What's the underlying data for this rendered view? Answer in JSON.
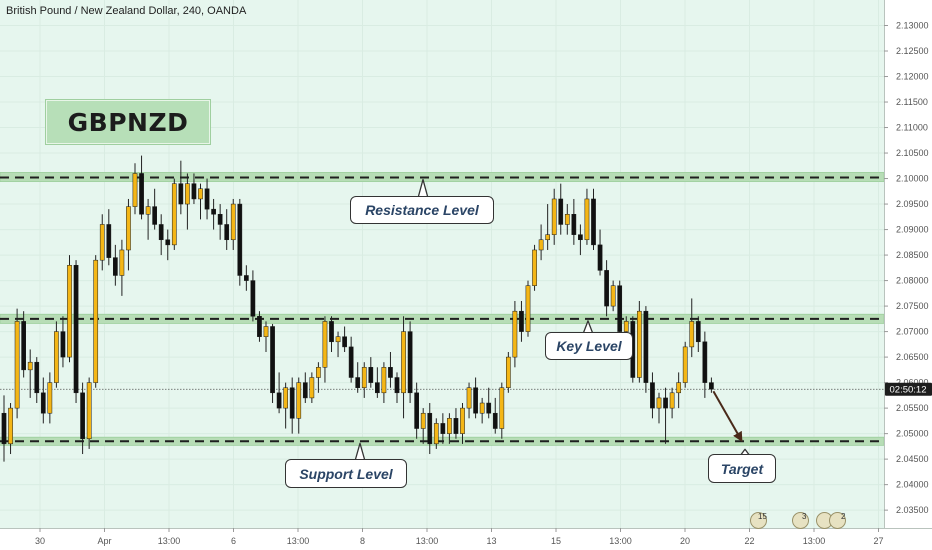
{
  "header": {
    "symbol_title": "British Pound / New Zealand Dollar, 240, OANDA"
  },
  "badge": {
    "label": "GBPNZD"
  },
  "annotations": {
    "resistance": "Resistance Level",
    "key": "Key Level",
    "support": "Support Level",
    "target": "Target"
  },
  "price_readout": {
    "time_label": "02:50:12",
    "last_price": 2.0587
  },
  "events": [
    {
      "name": "event-group-1",
      "count": "15"
    },
    {
      "name": "event-group-2",
      "count": "3"
    },
    {
      "name": "event-group-3",
      "count": ""
    },
    {
      "name": "event-group-4",
      "count": "2"
    }
  ],
  "colors": {
    "background": "#e6f6ee",
    "zone_fill": "#b7ddb6",
    "zone_dash": "#1f1f1f",
    "candle_up": "#f4b616",
    "candle_down": "#111111",
    "wick": "#222222",
    "grid": "#d9ece2",
    "axis_text": "#555555",
    "arrow": "#4a2a1a"
  },
  "chart_data": {
    "type": "candlestick",
    "title": "British Pound / New Zealand Dollar, 240, OANDA",
    "ylim": [
      2.0315,
      2.135
    ],
    "y_axis_side": "right",
    "y_ticks": [
      "2.13000",
      "2.12500",
      "2.12000",
      "2.11500",
      "2.11000",
      "2.10500",
      "2.10000",
      "2.09500",
      "2.09000",
      "2.08500",
      "2.08000",
      "2.07500",
      "2.07000",
      "2.06500",
      "2.06000",
      "2.05500",
      "2.05000",
      "2.04500",
      "2.04000",
      "2.03500"
    ],
    "x_ticks": [
      "30",
      "Apr",
      "13:00",
      "6",
      "13:00",
      "8",
      "13:00",
      "13",
      "15",
      "13:00",
      "20",
      "22",
      "13:00",
      "27"
    ],
    "zones": [
      {
        "name": "resistance",
        "low": 2.0994,
        "high": 2.1012,
        "level": 2.1002
      },
      {
        "name": "key",
        "low": 2.0716,
        "high": 2.0734,
        "level": 2.0725
      },
      {
        "name": "support",
        "low": 2.0477,
        "high": 2.0493,
        "level": 2.0485
      }
    ],
    "candles": [
      {
        "o": 2.054,
        "h": 2.0575,
        "l": 2.0445,
        "c": 2.048
      },
      {
        "o": 2.048,
        "h": 2.056,
        "l": 2.046,
        "c": 2.055
      },
      {
        "o": 2.055,
        "h": 2.0745,
        "l": 2.053,
        "c": 2.072
      },
      {
        "o": 2.072,
        "h": 2.074,
        "l": 2.061,
        "c": 2.0625
      },
      {
        "o": 2.0625,
        "h": 2.0665,
        "l": 2.057,
        "c": 2.064
      },
      {
        "o": 2.064,
        "h": 2.065,
        "l": 2.056,
        "c": 2.058
      },
      {
        "o": 2.058,
        "h": 2.061,
        "l": 2.052,
        "c": 2.054
      },
      {
        "o": 2.054,
        "h": 2.062,
        "l": 2.052,
        "c": 2.06
      },
      {
        "o": 2.06,
        "h": 2.072,
        "l": 2.059,
        "c": 2.07
      },
      {
        "o": 2.07,
        "h": 2.073,
        "l": 2.063,
        "c": 2.065
      },
      {
        "o": 2.065,
        "h": 2.085,
        "l": 2.064,
        "c": 2.083
      },
      {
        "o": 2.083,
        "h": 2.084,
        "l": 2.056,
        "c": 2.058
      },
      {
        "o": 2.058,
        "h": 2.06,
        "l": 2.046,
        "c": 2.049
      },
      {
        "o": 2.049,
        "h": 2.061,
        "l": 2.047,
        "c": 2.06
      },
      {
        "o": 2.06,
        "h": 2.085,
        "l": 2.059,
        "c": 2.084
      },
      {
        "o": 2.084,
        "h": 2.093,
        "l": 2.082,
        "c": 2.091
      },
      {
        "o": 2.091,
        "h": 2.094,
        "l": 2.083,
        "c": 2.0845
      },
      {
        "o": 2.0845,
        "h": 2.087,
        "l": 2.079,
        "c": 2.081
      },
      {
        "o": 2.081,
        "h": 2.088,
        "l": 2.077,
        "c": 2.086
      },
      {
        "o": 2.086,
        "h": 2.096,
        "l": 2.082,
        "c": 2.0945
      },
      {
        "o": 2.0945,
        "h": 2.103,
        "l": 2.093,
        "c": 2.101
      },
      {
        "o": 2.101,
        "h": 2.1045,
        "l": 2.092,
        "c": 2.093
      },
      {
        "o": 2.093,
        "h": 2.096,
        "l": 2.088,
        "c": 2.0945
      },
      {
        "o": 2.0945,
        "h": 2.098,
        "l": 2.09,
        "c": 2.091
      },
      {
        "o": 2.091,
        "h": 2.093,
        "l": 2.085,
        "c": 2.088
      },
      {
        "o": 2.088,
        "h": 2.09,
        "l": 2.084,
        "c": 2.087
      },
      {
        "o": 2.087,
        "h": 2.1,
        "l": 2.086,
        "c": 2.099
      },
      {
        "o": 2.099,
        "h": 2.1035,
        "l": 2.093,
        "c": 2.095
      },
      {
        "o": 2.095,
        "h": 2.101,
        "l": 2.09,
        "c": 2.099
      },
      {
        "o": 2.099,
        "h": 2.101,
        "l": 2.095,
        "c": 2.096
      },
      {
        "o": 2.096,
        "h": 2.099,
        "l": 2.092,
        "c": 2.098
      },
      {
        "o": 2.098,
        "h": 2.1,
        "l": 2.092,
        "c": 2.094
      },
      {
        "o": 2.094,
        "h": 2.096,
        "l": 2.09,
        "c": 2.093
      },
      {
        "o": 2.093,
        "h": 2.095,
        "l": 2.088,
        "c": 2.091
      },
      {
        "o": 2.091,
        "h": 2.094,
        "l": 2.086,
        "c": 2.088
      },
      {
        "o": 2.088,
        "h": 2.096,
        "l": 2.086,
        "c": 2.095
      },
      {
        "o": 2.095,
        "h": 2.096,
        "l": 2.079,
        "c": 2.081
      },
      {
        "o": 2.081,
        "h": 2.083,
        "l": 2.078,
        "c": 2.08
      },
      {
        "o": 2.08,
        "h": 2.082,
        "l": 2.072,
        "c": 2.073
      },
      {
        "o": 2.073,
        "h": 2.074,
        "l": 2.068,
        "c": 2.069
      },
      {
        "o": 2.069,
        "h": 2.072,
        "l": 2.066,
        "c": 2.071
      },
      {
        "o": 2.071,
        "h": 2.0715,
        "l": 2.056,
        "c": 2.058
      },
      {
        "o": 2.058,
        "h": 2.062,
        "l": 2.054,
        "c": 2.055
      },
      {
        "o": 2.055,
        "h": 2.06,
        "l": 2.051,
        "c": 2.059
      },
      {
        "o": 2.059,
        "h": 2.061,
        "l": 2.05,
        "c": 2.053
      },
      {
        "o": 2.053,
        "h": 2.061,
        "l": 2.05,
        "c": 2.06
      },
      {
        "o": 2.06,
        "h": 2.062,
        "l": 2.056,
        "c": 2.057
      },
      {
        "o": 2.057,
        "h": 2.062,
        "l": 2.056,
        "c": 2.061
      },
      {
        "o": 2.061,
        "h": 2.064,
        "l": 2.058,
        "c": 2.063
      },
      {
        "o": 2.063,
        "h": 2.073,
        "l": 2.06,
        "c": 2.072
      },
      {
        "o": 2.072,
        "h": 2.073,
        "l": 2.066,
        "c": 2.068
      },
      {
        "o": 2.068,
        "h": 2.07,
        "l": 2.065,
        "c": 2.069
      },
      {
        "o": 2.069,
        "h": 2.071,
        "l": 2.066,
        "c": 2.067
      },
      {
        "o": 2.067,
        "h": 2.069,
        "l": 2.06,
        "c": 2.061
      },
      {
        "o": 2.061,
        "h": 2.064,
        "l": 2.058,
        "c": 2.059
      },
      {
        "o": 2.059,
        "h": 2.064,
        "l": 2.057,
        "c": 2.063
      },
      {
        "o": 2.063,
        "h": 2.065,
        "l": 2.059,
        "c": 2.06
      },
      {
        "o": 2.06,
        "h": 2.063,
        "l": 2.057,
        "c": 2.058
      },
      {
        "o": 2.058,
        "h": 2.064,
        "l": 2.056,
        "c": 2.063
      },
      {
        "o": 2.063,
        "h": 2.066,
        "l": 2.059,
        "c": 2.061
      },
      {
        "o": 2.061,
        "h": 2.062,
        "l": 2.056,
        "c": 2.058
      },
      {
        "o": 2.058,
        "h": 2.073,
        "l": 2.053,
        "c": 2.07
      },
      {
        "o": 2.07,
        "h": 2.072,
        "l": 2.056,
        "c": 2.058
      },
      {
        "o": 2.058,
        "h": 2.06,
        "l": 2.049,
        "c": 2.051
      },
      {
        "o": 2.051,
        "h": 2.055,
        "l": 2.048,
        "c": 2.054
      },
      {
        "o": 2.054,
        "h": 2.056,
        "l": 2.046,
        "c": 2.048
      },
      {
        "o": 2.048,
        "h": 2.053,
        "l": 2.047,
        "c": 2.052
      },
      {
        "o": 2.052,
        "h": 2.054,
        "l": 2.048,
        "c": 2.05
      },
      {
        "o": 2.05,
        "h": 2.054,
        "l": 2.048,
        "c": 2.053
      },
      {
        "o": 2.053,
        "h": 2.055,
        "l": 2.049,
        "c": 2.05
      },
      {
        "o": 2.05,
        "h": 2.056,
        "l": 2.048,
        "c": 2.055
      },
      {
        "o": 2.055,
        "h": 2.06,
        "l": 2.053,
        "c": 2.059
      },
      {
        "o": 2.059,
        "h": 2.061,
        "l": 2.053,
        "c": 2.054
      },
      {
        "o": 2.054,
        "h": 2.057,
        "l": 2.052,
        "c": 2.056
      },
      {
        "o": 2.056,
        "h": 2.059,
        "l": 2.053,
        "c": 2.054
      },
      {
        "o": 2.054,
        "h": 2.057,
        "l": 2.05,
        "c": 2.051
      },
      {
        "o": 2.051,
        "h": 2.06,
        "l": 2.049,
        "c": 2.059
      },
      {
        "o": 2.059,
        "h": 2.066,
        "l": 2.058,
        "c": 2.065
      },
      {
        "o": 2.065,
        "h": 2.076,
        "l": 2.063,
        "c": 2.074
      },
      {
        "o": 2.074,
        "h": 2.076,
        "l": 2.068,
        "c": 2.07
      },
      {
        "o": 2.07,
        "h": 2.08,
        "l": 2.069,
        "c": 2.079
      },
      {
        "o": 2.079,
        "h": 2.087,
        "l": 2.078,
        "c": 2.086
      },
      {
        "o": 2.086,
        "h": 2.091,
        "l": 2.084,
        "c": 2.088
      },
      {
        "o": 2.088,
        "h": 2.095,
        "l": 2.086,
        "c": 2.089
      },
      {
        "o": 2.089,
        "h": 2.098,
        "l": 2.087,
        "c": 2.096
      },
      {
        "o": 2.096,
        "h": 2.099,
        "l": 2.089,
        "c": 2.091
      },
      {
        "o": 2.091,
        "h": 2.095,
        "l": 2.089,
        "c": 2.093
      },
      {
        "o": 2.093,
        "h": 2.096,
        "l": 2.087,
        "c": 2.089
      },
      {
        "o": 2.089,
        "h": 2.091,
        "l": 2.085,
        "c": 2.088
      },
      {
        "o": 2.088,
        "h": 2.098,
        "l": 2.087,
        "c": 2.096
      },
      {
        "o": 2.096,
        "h": 2.098,
        "l": 2.086,
        "c": 2.087
      },
      {
        "o": 2.087,
        "h": 2.09,
        "l": 2.081,
        "c": 2.082
      },
      {
        "o": 2.082,
        "h": 2.084,
        "l": 2.073,
        "c": 2.075
      },
      {
        "o": 2.075,
        "h": 2.08,
        "l": 2.074,
        "c": 2.079
      },
      {
        "o": 2.079,
        "h": 2.08,
        "l": 2.068,
        "c": 2.07
      },
      {
        "o": 2.07,
        "h": 2.073,
        "l": 2.066,
        "c": 2.072
      },
      {
        "o": 2.072,
        "h": 2.073,
        "l": 2.06,
        "c": 2.061
      },
      {
        "o": 2.061,
        "h": 2.076,
        "l": 2.06,
        "c": 2.074
      },
      {
        "o": 2.074,
        "h": 2.075,
        "l": 2.058,
        "c": 2.06
      },
      {
        "o": 2.06,
        "h": 2.062,
        "l": 2.053,
        "c": 2.055
      },
      {
        "o": 2.055,
        "h": 2.058,
        "l": 2.052,
        "c": 2.057
      },
      {
        "o": 2.057,
        "h": 2.059,
        "l": 2.048,
        "c": 2.055
      },
      {
        "o": 2.055,
        "h": 2.059,
        "l": 2.053,
        "c": 2.058
      },
      {
        "o": 2.058,
        "h": 2.062,
        "l": 2.055,
        "c": 2.06
      },
      {
        "o": 2.06,
        "h": 2.068,
        "l": 2.059,
        "c": 2.067
      },
      {
        "o": 2.067,
        "h": 2.0765,
        "l": 2.065,
        "c": 2.072
      },
      {
        "o": 2.072,
        "h": 2.073,
        "l": 2.066,
        "c": 2.068
      },
      {
        "o": 2.068,
        "h": 2.07,
        "l": 2.057,
        "c": 2.06
      },
      {
        "o": 2.06,
        "h": 2.061,
        "l": 2.058,
        "c": 2.0587
      }
    ],
    "forecast_arrow": {
      "from": 2.0583,
      "to": 2.0487
    }
  }
}
